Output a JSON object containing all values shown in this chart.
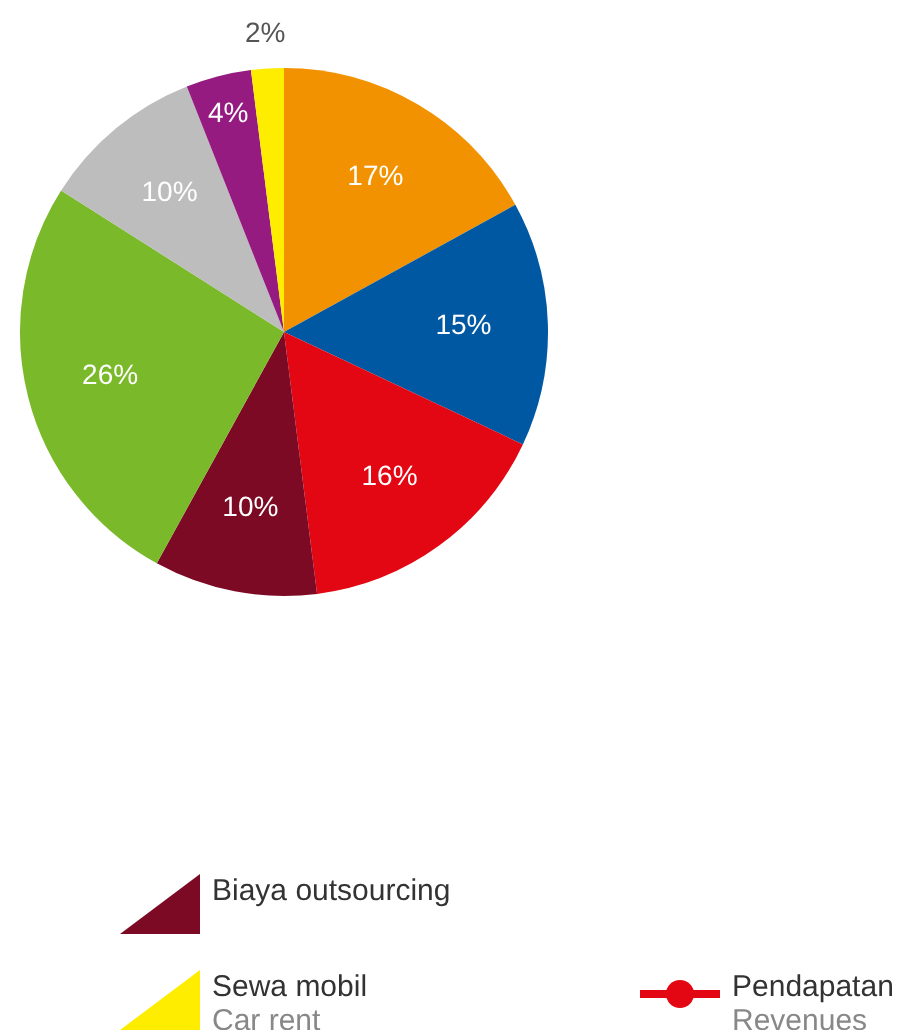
{
  "chart_data": {
    "type": "pie",
    "categories": [
      null,
      null,
      null,
      "Biaya outsourcing",
      null,
      null,
      null,
      "Sewa mobil\nCar rent"
    ],
    "values": [
      17,
      15,
      16,
      10,
      26,
      10,
      4,
      2
    ],
    "value_labels": [
      "17%",
      "15%",
      "16%",
      "10%",
      "26%",
      "10%",
      "4%",
      "2%"
    ],
    "colors": [
      "#f39200",
      "#0058a3",
      "#e30613",
      "#7d0a25",
      "#7ab929",
      "#bdbdbd",
      "#951b81",
      "#ffed00"
    ],
    "legend": "bottom",
    "annotations": [
      "Pendapatan\nRevenues"
    ]
  }
}
